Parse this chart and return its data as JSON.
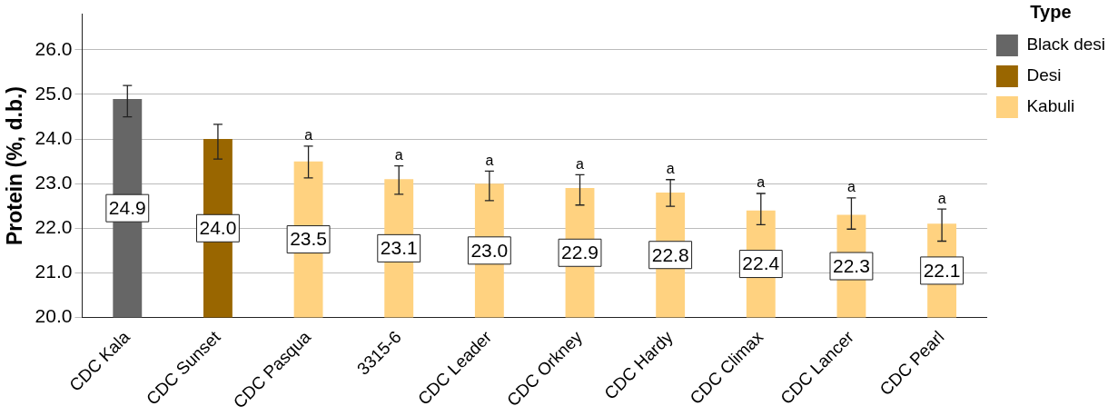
{
  "chart_data": {
    "type": "bar",
    "ylabel": "Protein (%, d.b.)",
    "legend_title": "Type",
    "legend": "top right",
    "grid": "y",
    "categories": [
      "CDC Kala",
      "CDC Sunset",
      "CDC Pasqua",
      "3315-6",
      "CDC Leader",
      "CDC Orkney",
      "CDC Hardy",
      "CDC Climax",
      "CDC Lancer",
      "CDC Pearl"
    ],
    "ylim": [
      20,
      26.8
    ],
    "yticks": [
      {
        "value": 20,
        "label": "20.0"
      },
      {
        "value": 21,
        "label": "21.0"
      },
      {
        "value": 22,
        "label": "22.0"
      },
      {
        "value": 23,
        "label": "23.0"
      },
      {
        "value": 24,
        "label": "24.0"
      },
      {
        "value": 25,
        "label": "25.0"
      },
      {
        "value": 26,
        "label": "26.0"
      }
    ],
    "series": [
      {
        "name": "Black desi",
        "color": "#666666",
        "values": [
          24.9,
          null,
          null,
          null,
          null,
          null,
          null,
          null,
          null,
          null
        ],
        "value_labels": [
          "24.9",
          null,
          null,
          null,
          null,
          null,
          null,
          null,
          null,
          null
        ],
        "errors": [
          [
            24.5,
            25.2
          ],
          null,
          null,
          null,
          null,
          null,
          null,
          null,
          null,
          null
        ]
      },
      {
        "name": "Desi",
        "color": "#996600",
        "values": [
          null,
          24.0,
          null,
          null,
          null,
          null,
          null,
          null,
          null,
          null
        ],
        "value_labels": [
          null,
          "24.0",
          null,
          null,
          null,
          null,
          null,
          null,
          null,
          null
        ],
        "errors": [
          null,
          [
            23.55,
            24.33
          ],
          null,
          null,
          null,
          null,
          null,
          null,
          null,
          null
        ]
      },
      {
        "name": "Kabuli",
        "color": "#ffd280",
        "values": [
          null,
          null,
          23.5,
          23.1,
          23.0,
          22.9,
          22.8,
          22.4,
          22.3,
          22.1
        ],
        "value_labels": [
          null,
          null,
          "23.5",
          "23.1",
          "23.0",
          "22.9",
          "22.8",
          "22.4",
          "22.3",
          "22.1"
        ],
        "errors": [
          null,
          null,
          [
            23.13,
            23.84
          ],
          [
            22.76,
            23.4
          ],
          [
            22.62,
            23.28
          ],
          [
            22.52,
            23.2
          ],
          [
            22.49,
            23.09
          ],
          [
            22.08,
            22.78
          ],
          [
            21.98,
            22.68
          ],
          [
            21.71,
            22.43
          ]
        ]
      }
    ],
    "annotations": [
      {
        "text": "a",
        "x": "CDC Pasqua",
        "y": 23.84
      },
      {
        "text": "a",
        "x": "3315-6",
        "y": 23.4
      },
      {
        "text": "a",
        "x": "CDC Leader",
        "y": 23.28
      },
      {
        "text": "a",
        "x": "CDC Orkney",
        "y": 23.2
      },
      {
        "text": "a",
        "x": "CDC Hardy",
        "y": 23.09
      },
      {
        "text": "a",
        "x": "CDC Climax",
        "y": 22.78
      },
      {
        "text": "a",
        "x": "CDC Lancer",
        "y": 22.68
      },
      {
        "text": "a",
        "x": "CDC Pearl",
        "y": 22.43
      }
    ]
  }
}
